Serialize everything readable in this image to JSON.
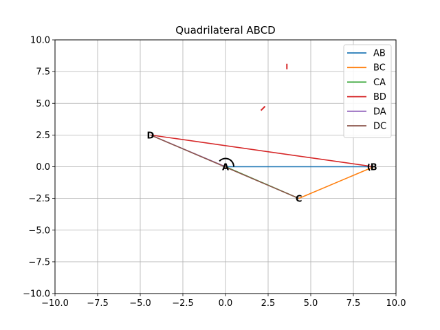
{
  "chart_data": {
    "type": "line",
    "title": "Quadrilateral ABCD",
    "xlabel": "",
    "ylabel": "",
    "xlim": [
      -10,
      10
    ],
    "ylim": [
      -10,
      10
    ],
    "grid": true,
    "legend_placement": "top-right",
    "x_ticks": [
      "−10.0",
      "−7.5",
      "−5.0",
      "−2.5",
      "0.0",
      "2.5",
      "5.0",
      "7.5",
      "10.0"
    ],
    "y_ticks": [
      "−10.0",
      "−7.5",
      "−5.0",
      "−2.5",
      "0.0",
      "2.5",
      "5.0",
      "7.5",
      "10.0"
    ],
    "points": [
      {
        "name": "A",
        "x": 0,
        "y": 0
      },
      {
        "name": "B",
        "x": 8.7,
        "y": 0
      },
      {
        "name": "C",
        "x": 4.3,
        "y": -2.5
      },
      {
        "name": "D",
        "x": -4.4,
        "y": 2.5
      }
    ],
    "series": [
      {
        "name": "AB",
        "color": "#1f77b4",
        "x": [
          0,
          8.7
        ],
        "y": [
          0,
          0
        ]
      },
      {
        "name": "BC",
        "color": "#ff7f0e",
        "x": [
          8.7,
          4.3
        ],
        "y": [
          0,
          -2.5
        ]
      },
      {
        "name": "CA",
        "color": "#2ca02c",
        "x": [
          4.3,
          0
        ],
        "y": [
          -2.5,
          0
        ]
      },
      {
        "name": "BD",
        "color": "#d62728",
        "x": [
          8.7,
          -4.4
        ],
        "y": [
          0,
          2.5
        ]
      },
      {
        "name": "DA",
        "color": "#9467bd",
        "x": [
          -4.4,
          0
        ],
        "y": [
          2.5,
          0
        ]
      },
      {
        "name": "DC",
        "color": "#8c564b",
        "x": [
          -4.4,
          4.3
        ],
        "y": [
          2.5,
          -2.5
        ]
      }
    ],
    "angle_arcs": [
      {
        "at": "A",
        "x": 0,
        "y": 0
      },
      {
        "at": "B",
        "x": 8.7,
        "y": 0
      }
    ],
    "tick_marks": [
      {
        "x": 3.6,
        "y": 7.9,
        "color": "#d62728"
      },
      {
        "x": 2.2,
        "y": 4.6,
        "color": "#d62728"
      }
    ]
  }
}
